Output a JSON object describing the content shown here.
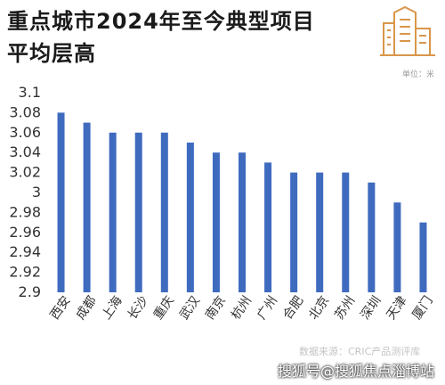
{
  "header": {
    "title_line1": "重点城市2024年至今典型项目",
    "title_line2": "平均层高",
    "unit": "单位：米"
  },
  "footer": {
    "source": "数据来源：CRIC产品测评库",
    "watermark": "搜狐号@搜狐焦点淄博站"
  },
  "icons": {
    "header_icon": "building-icon"
  },
  "colors": {
    "bar": "#3f6bbf",
    "icon": "#d9964a"
  },
  "chart_data": {
    "type": "bar",
    "categories": [
      "西安",
      "成都",
      "上海",
      "长沙",
      "重庆",
      "武汉",
      "南京",
      "杭州",
      "广州",
      "合肥",
      "北京",
      "苏州",
      "深圳",
      "天津",
      "厦门"
    ],
    "values": [
      3.08,
      3.07,
      3.06,
      3.06,
      3.06,
      3.05,
      3.04,
      3.04,
      3.03,
      3.02,
      3.02,
      3.02,
      3.01,
      2.99,
      2.97
    ],
    "ylim": [
      2.9,
      3.1
    ],
    "yticks": [
      "3.1",
      "3.08",
      "3.06",
      "3.04",
      "3.02",
      "3",
      "2.98",
      "2.96",
      "2.94",
      "2.92",
      "2.9"
    ],
    "title": "重点城市2024年至今典型项目平均层高",
    "ylabel": "",
    "xlabel": "",
    "grid": false,
    "legend": "none"
  }
}
